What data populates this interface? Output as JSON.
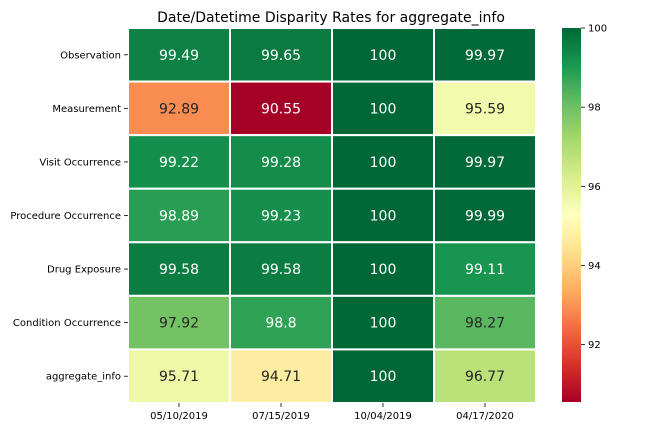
{
  "chart_data": {
    "type": "heatmap",
    "title": "Date/Datetime Disparity Rates for aggregate_info",
    "rows": [
      "Observation",
      "Measurement",
      "Visit Occurrence",
      "Procedure Occurrence",
      "Drug Exposure",
      "Condition Occurrence",
      "aggregate_info"
    ],
    "columns": [
      "05/10/2019",
      "07/15/2019",
      "10/04/2019",
      "04/17/2020"
    ],
    "values": [
      [
        99.49,
        99.65,
        100,
        99.97
      ],
      [
        92.89,
        90.55,
        100,
        95.59
      ],
      [
        99.22,
        99.28,
        100,
        99.97
      ],
      [
        98.89,
        99.23,
        100,
        99.99
      ],
      [
        99.58,
        99.58,
        100,
        99.11
      ],
      [
        97.92,
        98.8,
        100,
        98.27
      ],
      [
        95.71,
        94.71,
        100,
        96.77
      ]
    ],
    "colormap": "RdYlGn",
    "vmin": 90.55,
    "vmax": 100,
    "colorbar_ticks": [
      92,
      94,
      96,
      98,
      100
    ],
    "grid_lines": "white"
  }
}
